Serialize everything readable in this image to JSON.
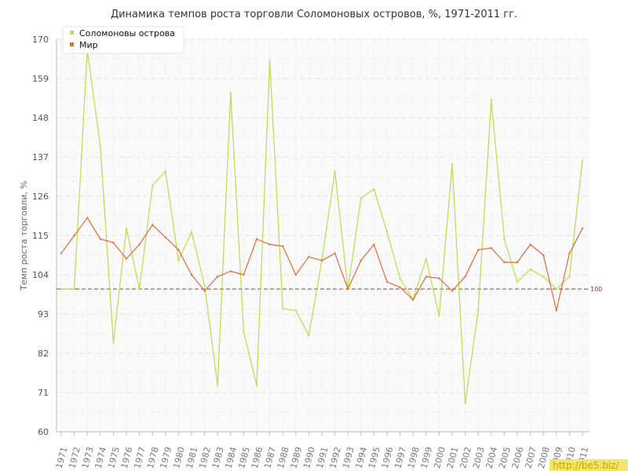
{
  "chart_data": {
    "type": "line",
    "title": "Динамика темпов роста торговли Соломоновых островов, %, 1971-2011 гг.",
    "xlabel": "",
    "ylabel": "Темп роста торговли, %",
    "ylim": [
      60,
      170
    ],
    "yticks": [
      60,
      71,
      82,
      93,
      104,
      115,
      126,
      137,
      148,
      159,
      170
    ],
    "grid": true,
    "legend_position": "top-left",
    "x": [
      1971,
      1972,
      1973,
      1974,
      1975,
      1976,
      1977,
      1978,
      1979,
      1980,
      1981,
      1982,
      1983,
      1984,
      1985,
      1986,
      1987,
      1988,
      1989,
      1990,
      1991,
      1992,
      1993,
      1994,
      1995,
      1996,
      1997,
      1998,
      1999,
      2000,
      2001,
      2002,
      2003,
      2004,
      2005,
      2006,
      2007,
      2008,
      2009,
      2010,
      2011
    ],
    "series": [
      {
        "name": "Соломоновы острова",
        "color": "#bcdb4b",
        "values": [
          100,
          100,
          167,
          140,
          85,
          117,
          100,
          129,
          133,
          108,
          116,
          101,
          73,
          155,
          88,
          73,
          164,
          94.5,
          94,
          87,
          108,
          133,
          100,
          125.5,
          128,
          116,
          103,
          97,
          108.5,
          92.5,
          135,
          68,
          94,
          153,
          114,
          102,
          105.5,
          103.5,
          100,
          103.5,
          136
        ]
      },
      {
        "name": "Мир",
        "color": "#e06a3b",
        "values": [
          110,
          115,
          120,
          114,
          113,
          108.5,
          112.5,
          118,
          114.5,
          111,
          104,
          99.5,
          103.5,
          105,
          104,
          114,
          112.5,
          112,
          104,
          109,
          108,
          110,
          100,
          108,
          112.5,
          102,
          100.5,
          97,
          103.5,
          103,
          99.5,
          103.5,
          111,
          111.5,
          107.5,
          107.5,
          112.5,
          109.5,
          94,
          110,
          117
        ]
      }
    ],
    "reference_line": {
      "value": 100,
      "label": "100",
      "color": "#8a3a3a"
    }
  },
  "watermark": "http://be5.biz/"
}
